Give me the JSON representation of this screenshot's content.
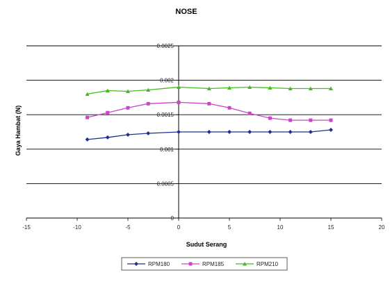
{
  "chart_data": {
    "type": "line",
    "title": "NOSE",
    "xlabel": "Sudut Serang",
    "ylabel": "Gaya Hambat (N)",
    "xlim": [
      -15,
      20
    ],
    "ylim": [
      0,
      0.0025
    ],
    "xticks": [
      -15,
      -10,
      -5,
      0,
      5,
      10,
      15,
      20
    ],
    "yticks": [
      0,
      0.0005,
      0.001,
      0.0015,
      0.002,
      0.0025
    ],
    "xtick_labels": [
      "-15",
      "-10",
      "-5",
      "0",
      "5",
      "10",
      "15",
      "20"
    ],
    "ytick_labels": [
      "0",
      "0.0005",
      "0.001",
      "0.0015",
      "0.002",
      "0.0025"
    ],
    "grid": true,
    "legend_position": "bottom",
    "x": [
      -9,
      -7,
      -5,
      -3,
      0,
      3,
      5,
      7,
      9,
      11,
      13,
      15
    ],
    "series": [
      {
        "name": "RPM180",
        "color": "#1f2f8f",
        "marker": "diamond",
        "values": [
          0.00114,
          0.00117,
          0.00121,
          0.00123,
          0.00125,
          0.00125,
          0.00125,
          0.00125,
          0.00125,
          0.00125,
          0.00125,
          0.00128
        ]
      },
      {
        "name": "RPM185",
        "color": "#cc44cc",
        "marker": "square",
        "values": [
          0.00146,
          0.00153,
          0.0016,
          0.00166,
          0.00168,
          0.00166,
          0.0016,
          0.00152,
          0.00145,
          0.00142,
          0.00142,
          0.00142
        ]
      },
      {
        "name": "RPM210",
        "color": "#44bb22",
        "marker": "triangle",
        "values": [
          0.0018,
          0.00185,
          0.00184,
          0.00186,
          0.0019,
          0.00188,
          0.00189,
          0.0019,
          0.00189,
          0.00188,
          0.00188,
          0.00188
        ]
      }
    ]
  }
}
